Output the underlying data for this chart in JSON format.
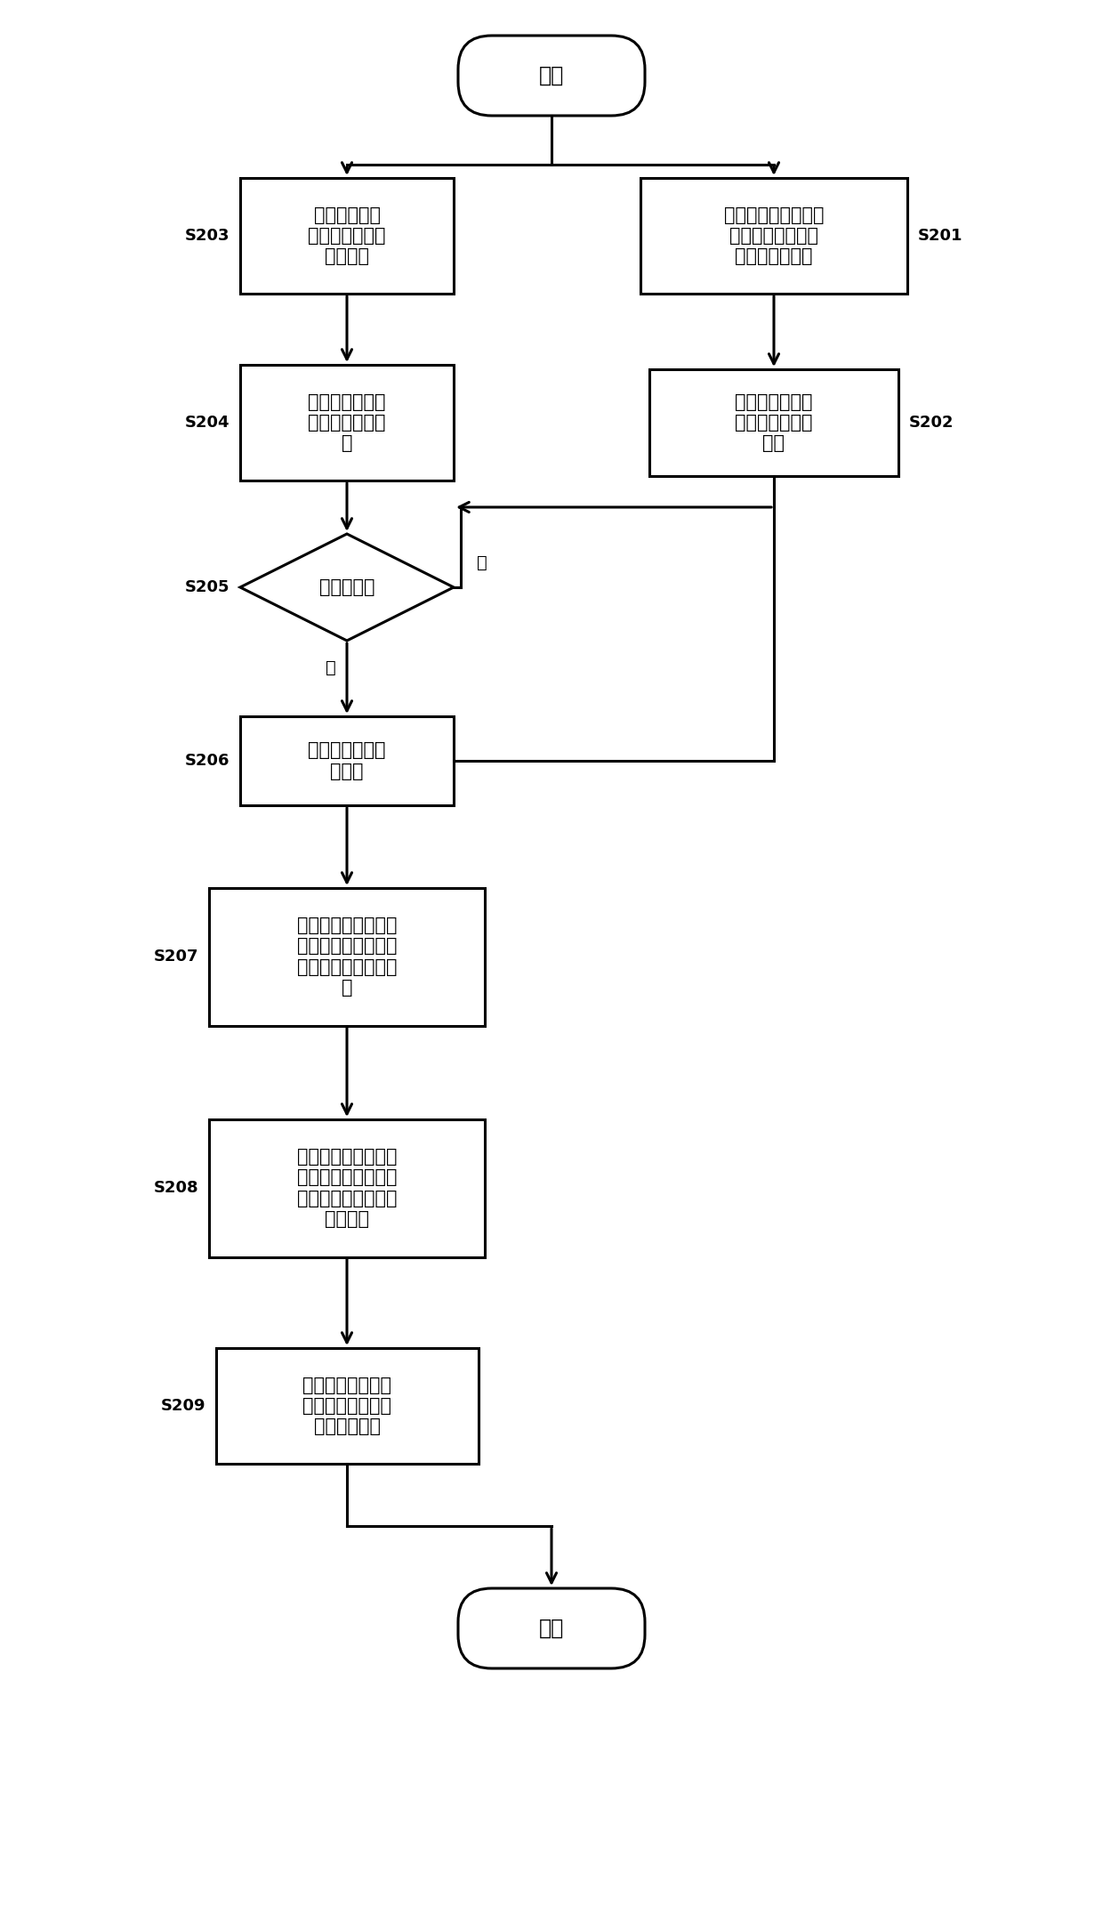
{
  "bg_color": "#ffffff",
  "lc": "#000000",
  "tc": "#000000",
  "start_text": "开始",
  "end_text": "结束",
  "S201_text": "连接基站，接收各基\n站发送的伪距观测\n信息和导航信息",
  "S202_text": "将收到的差分基\n站的数据解析并\n保存",
  "S203_text": "核对用户登录\n信息，和客户端\n建立连接",
  "S204_text": "等待接收客户端\n的单点定位的数\n据",
  "S205_text": "是否有数据",
  "S205_yes": "是",
  "S205_no": "否",
  "S206_text": "解析客户端上传\n的数据",
  "S207_text": "根据收到的客户端定\n位信息和差分基站的\n数据选择基准参考基\n站",
  "S208_text": "根据基准参考基站的\n数据解算客户端的位\n置坐标改正数以及修\n正卫星集",
  "S209_text": "将定位信息改正数\n和修正卫星集数据\n传送给客户端",
  "figw": 12.4,
  "figh": 21.69,
  "dpi": 100
}
